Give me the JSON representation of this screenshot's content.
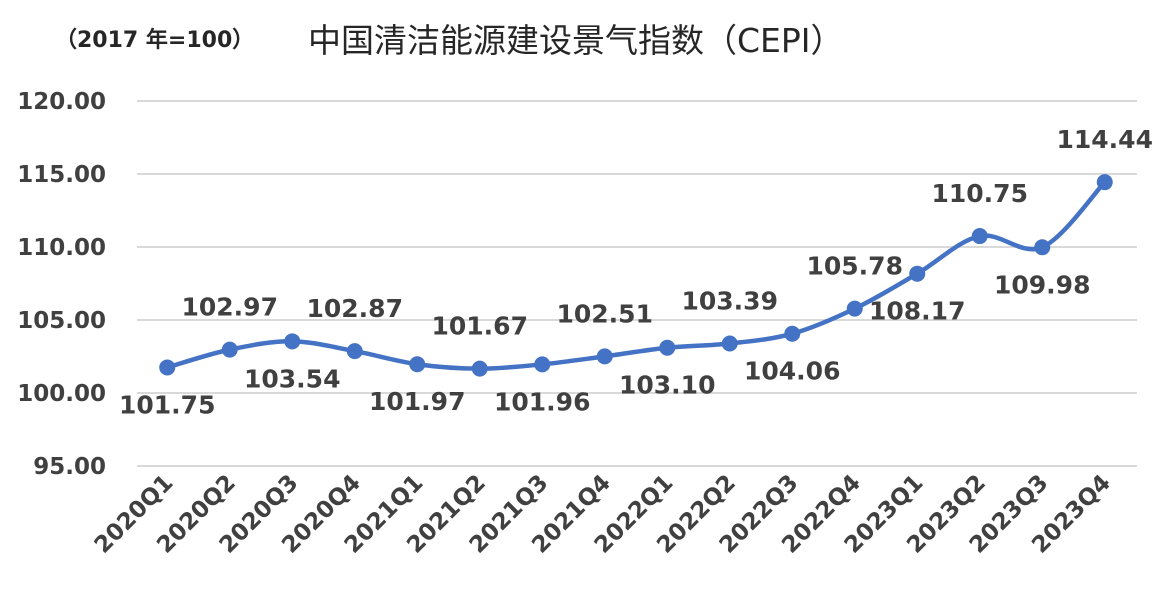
{
  "chart_data": {
    "type": "line",
    "title": "中国清洁能源建设景气指数（CEPI）",
    "subtitle": "（2017 年=100）",
    "xlabel": "",
    "ylabel": "",
    "ylim": [
      95,
      120
    ],
    "yticks": [
      "95.00",
      "100.00",
      "105.00",
      "110.00",
      "115.00",
      "120.00"
    ],
    "grid": true,
    "legend": "none",
    "color": "#4472c4",
    "categories": [
      "2020Q1",
      "2020Q2",
      "2020Q3",
      "2020Q4",
      "2021Q1",
      "2021Q2",
      "2021Q3",
      "2021Q4",
      "2022Q1",
      "2022Q2",
      "2022Q3",
      "2022Q4",
      "2023Q1",
      "2023Q2",
      "2023Q3",
      "2023Q4"
    ],
    "values": [
      101.75,
      102.97,
      103.54,
      102.87,
      101.97,
      101.67,
      101.96,
      102.51,
      103.1,
      103.39,
      104.06,
      105.78,
      108.17,
      110.75,
      109.98,
      114.44
    ],
    "labels": [
      "101.75",
      "102.97",
      "103.54",
      "102.87",
      "101.97",
      "101.67",
      "101.96",
      "102.51",
      "103.10",
      "103.39",
      "104.06",
      "105.78",
      "108.17",
      "110.75",
      "109.98",
      "114.44"
    ]
  }
}
